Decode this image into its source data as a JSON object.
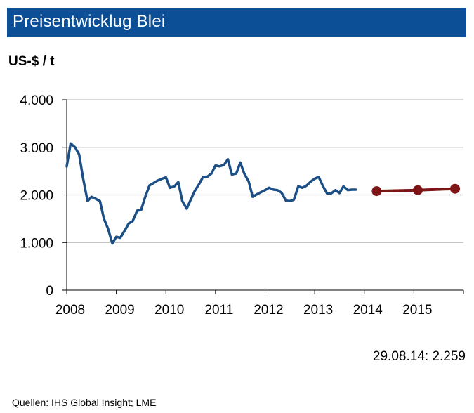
{
  "header": {
    "title": "Preisentwicklug Blei",
    "unit": "US-$ / t"
  },
  "footer": {
    "latest_value": "29.08.14: 2.259",
    "sources": "Quellen:  IHS Global Insight; LME"
  },
  "colors": {
    "title_bar": "#0c4f97",
    "history_line": "#1b4f86",
    "forecast_line": "#7d1416",
    "grid": "#bfbfbf"
  },
  "chart_data": {
    "type": "line",
    "title": "Preisentwicklug Blei",
    "ylabel": "US-$ / t",
    "ylim": [
      0,
      4000
    ],
    "xlim": [
      2008,
      2016
    ],
    "yticks": [
      0,
      1000,
      2000,
      3000,
      4000
    ],
    "ytick_labels": [
      "0",
      "1.000",
      "2.000",
      "3.000",
      "4.000"
    ],
    "xtick_labels": [
      "2008",
      "2009",
      "2010",
      "2011",
      "2012",
      "2013",
      "2014",
      "2015"
    ],
    "grid": "horizontal",
    "series": [
      {
        "color": "#1b4f86",
        "style": "solid",
        "x": [
          2008.0,
          2008.08,
          2008.17,
          2008.25,
          2008.33,
          2008.42,
          2008.5,
          2008.58,
          2008.67,
          2008.75,
          2008.83,
          2008.92,
          2009.0,
          2009.08,
          2009.17,
          2009.25,
          2009.33,
          2009.42,
          2009.5,
          2009.58,
          2009.67,
          2009.75,
          2009.83,
          2009.92,
          2010.0,
          2010.08,
          2010.17,
          2010.25,
          2010.33,
          2010.42,
          2010.5,
          2010.58,
          2010.67,
          2010.75,
          2010.83,
          2010.92,
          2011.0,
          2011.08,
          2011.17,
          2011.25,
          2011.33,
          2011.42,
          2011.5,
          2011.58,
          2011.67,
          2011.75,
          2011.83,
          2011.92,
          2012.0,
          2012.08,
          2012.17,
          2012.25,
          2012.33,
          2012.42,
          2012.5,
          2012.58,
          2012.67,
          2012.75,
          2012.83,
          2012.92,
          2013.0,
          2013.08,
          2013.17,
          2013.25,
          2013.33,
          2013.42,
          2013.5,
          2013.58,
          2013.67,
          2013.75,
          2013.83
        ],
        "values": [
          2600,
          3080,
          3000,
          2850,
          2350,
          1870,
          1960,
          1920,
          1870,
          1500,
          1300,
          980,
          1120,
          1100,
          1250,
          1400,
          1450,
          1670,
          1680,
          1950,
          2200,
          2250,
          2300,
          2340,
          2370,
          2150,
          2180,
          2270,
          1870,
          1710,
          1900,
          2080,
          2230,
          2380,
          2380,
          2450,
          2620,
          2600,
          2630,
          2750,
          2430,
          2450,
          2680,
          2450,
          2280,
          1960,
          2010,
          2060,
          2100,
          2150,
          2110,
          2100,
          2050,
          1880,
          1870,
          1900,
          2180,
          2150,
          2190,
          2280,
          2340,
          2380,
          2180,
          2030,
          2030,
          2100,
          2040,
          2180,
          2100,
          2110,
          2110
        ]
      },
      {
        "color": "#7d1416",
        "style": "solid",
        "markers": true,
        "x": [
          2014.25,
          2015.08,
          2015.83
        ],
        "values": [
          2080,
          2100,
          2130
        ]
      }
    ]
  }
}
